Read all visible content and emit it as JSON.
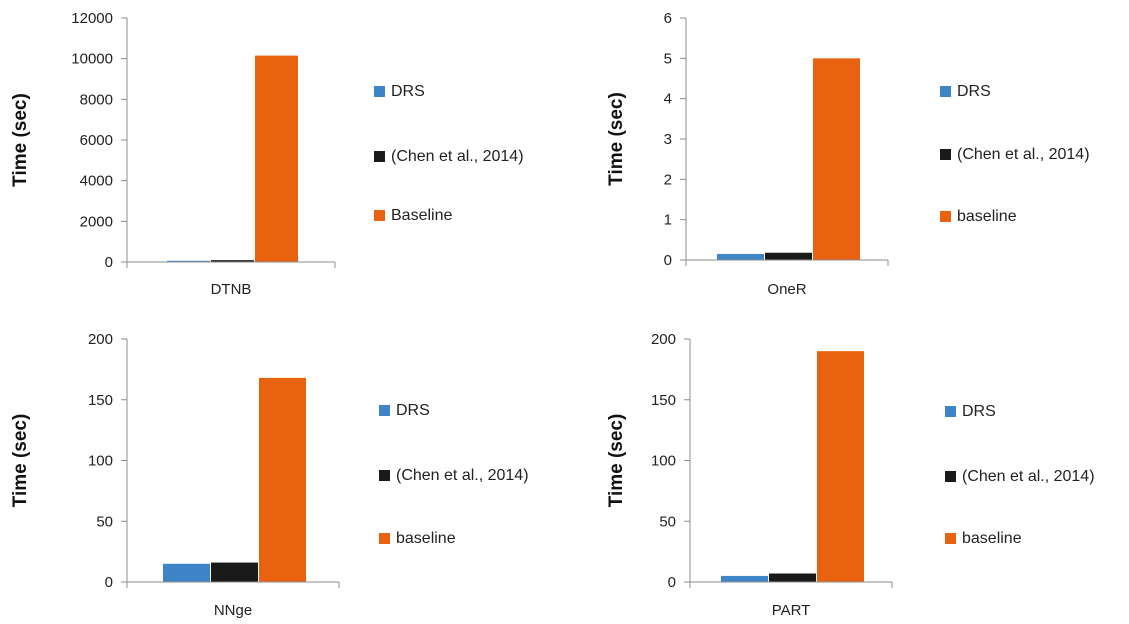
{
  "chart_data": [
    {
      "type": "bar",
      "categories": [
        "DTNB"
      ],
      "series": [
        {
          "name": "DRS",
          "values": [
            60
          ],
          "color": "#3d85c6"
        },
        {
          "name": "(Chen et al., 2014)",
          "values": [
            90
          ],
          "color": "#1a1a1a"
        },
        {
          "name": "Baseline",
          "values": [
            10150
          ],
          "color": "#e8620f"
        }
      ],
      "ylabel": "Time (sec)",
      "ylim": [
        0,
        12000
      ],
      "yticks": [
        "0",
        "2000",
        "4000",
        "6000",
        "8000",
        "10000",
        "12000"
      ],
      "grid": false,
      "legend": "right"
    },
    {
      "type": "bar",
      "categories": [
        "OneR"
      ],
      "series": [
        {
          "name": "DRS",
          "values": [
            0.15
          ],
          "color": "#3d85c6"
        },
        {
          "name": "(Chen et al., 2014)",
          "values": [
            0.18
          ],
          "color": "#1a1a1a"
        },
        {
          "name": "baseline",
          "values": [
            5
          ],
          "color": "#e8620f"
        }
      ],
      "ylabel": "Time (sec)",
      "ylim": [
        0,
        6
      ],
      "yticks": [
        "0",
        "1",
        "2",
        "3",
        "4",
        "5",
        "6"
      ],
      "grid": false,
      "legend": "right"
    },
    {
      "type": "bar",
      "categories": [
        "NNge"
      ],
      "series": [
        {
          "name": "DRS",
          "values": [
            15
          ],
          "color": "#3d85c6"
        },
        {
          "name": "(Chen et al., 2014)",
          "values": [
            16
          ],
          "color": "#1a1a1a"
        },
        {
          "name": "baseline",
          "values": [
            168
          ],
          "color": "#e8620f"
        }
      ],
      "ylabel": "Time (sec)",
      "ylim": [
        0,
        200
      ],
      "yticks": [
        "0",
        "50",
        "100",
        "150",
        "200"
      ],
      "grid": false,
      "legend": "right"
    },
    {
      "type": "bar",
      "categories": [
        "PART"
      ],
      "series": [
        {
          "name": "DRS",
          "values": [
            5
          ],
          "color": "#3d85c6"
        },
        {
          "name": "(Chen et al., 2014)",
          "values": [
            7
          ],
          "color": "#1a1a1a"
        },
        {
          "name": "baseline",
          "values": [
            190
          ],
          "color": "#e8620f"
        }
      ],
      "ylabel": "Time (sec)",
      "ylim": [
        0,
        200
      ],
      "yticks": [
        "0",
        "50",
        "100",
        "150",
        "200"
      ],
      "grid": false,
      "legend": "right"
    }
  ]
}
